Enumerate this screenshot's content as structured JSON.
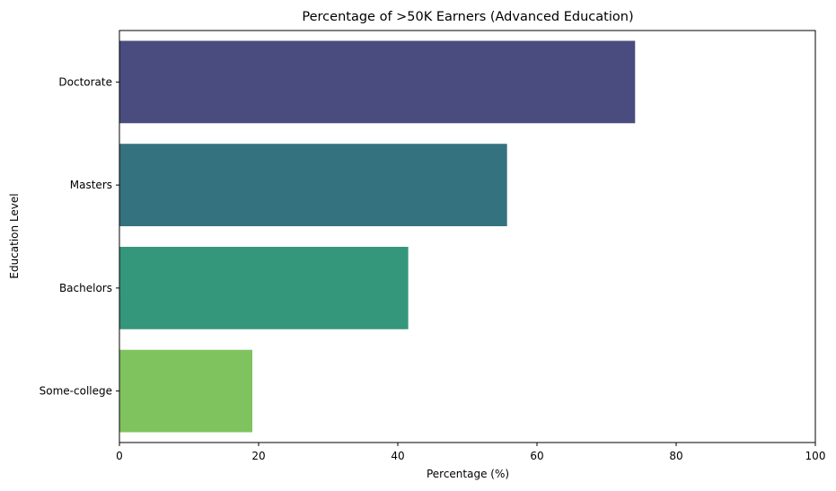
{
  "chart_data": {
    "type": "bar",
    "orientation": "horizontal",
    "title": "Percentage of >50K Earners (Advanced Education)",
    "xlabel": "Percentage (%)",
    "ylabel": "Education Level",
    "categories": [
      "Doctorate",
      "Masters",
      "Bachelors",
      "Some-college"
    ],
    "values": [
      74.1,
      55.7,
      41.5,
      19.1
    ],
    "colors": [
      "#4a4c7f",
      "#357280",
      "#34977b",
      "#7fc35e"
    ],
    "xlim": [
      0,
      100
    ],
    "xticks": [
      0,
      20,
      40,
      60,
      80,
      100
    ],
    "grid": false,
    "legend": "none"
  }
}
